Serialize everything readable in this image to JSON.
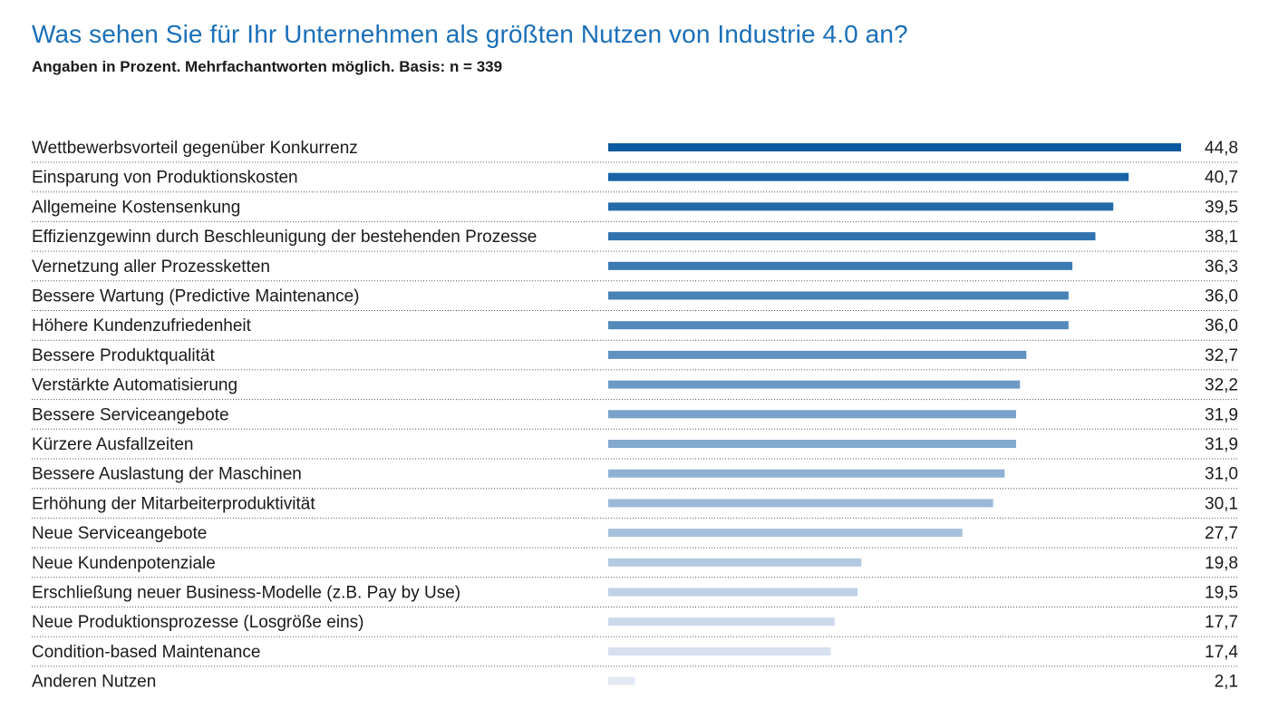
{
  "colors": {
    "title": "#1a6fb9",
    "text": "#1a1a1a",
    "separator": "#555555",
    "bar_darkest": "#0c5aa0",
    "bar_lightest": "#e3e9f4"
  },
  "chart_data": {
    "type": "bar",
    "orientation": "horizontal",
    "title": "Was sehen Sie für Ihr Unternehmen als größten Nutzen von Industrie 4.0 an?",
    "subtitle": "Angaben in Prozent. Mehrfachantworten möglich. Basis: n = 339",
    "xlim": [
      0,
      44.8
    ],
    "grid": false,
    "legend": "none",
    "categories": [
      "Wettbewerbsvorteil gegenüber Konkurrenz",
      "Einsparung von Produktionskosten",
      "Allgemeine Kostensenkung",
      "Effizienzgewinn durch Beschleunigung der bestehenden Prozesse",
      "Vernetzung aller Prozessketten",
      "Bessere Wartung (Predictive Maintenance)",
      "Höhere Kundenzufriedenheit",
      "Bessere Produktqualität",
      "Verstärkte Automatisierung",
      "Bessere Serviceangebote",
      "Kürzere Ausfallzeiten",
      "Bessere Auslastung der Maschinen",
      "Erhöhung der Mitarbeiterproduktivität",
      "Neue Serviceangebote",
      "Neue Kundenpotenziale",
      "Erschließung neuer Business-Modelle (z.B. Pay by Use)",
      "Neue Produktionsprozesse (Losgröße eins)",
      "Condition-based Maintenance",
      "Anderen Nutzen"
    ],
    "values": [
      44.8,
      40.7,
      39.5,
      38.1,
      36.3,
      36.0,
      36.0,
      32.7,
      32.2,
      31.9,
      31.9,
      31.0,
      30.1,
      27.7,
      19.8,
      19.5,
      17.7,
      17.4,
      2.1
    ],
    "value_labels": [
      "44,8",
      "40,7",
      "39,5",
      "38,1",
      "36,3",
      "36,0",
      "36,0",
      "32,7",
      "32,2",
      "31,9",
      "31,9",
      "31,0",
      "30,1",
      "27,7",
      "19,8",
      "19,5",
      "17,7",
      "17,4",
      "2,1"
    ]
  }
}
